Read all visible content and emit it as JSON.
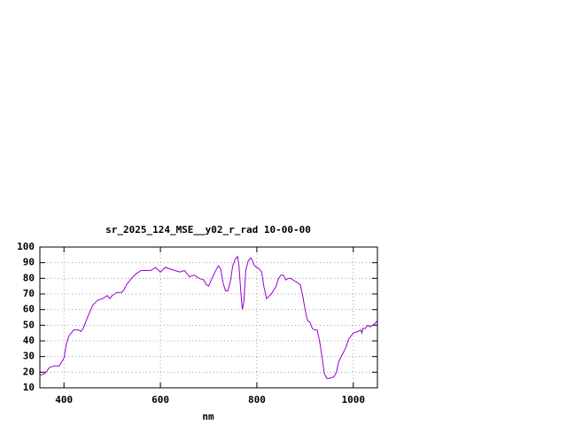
{
  "chart_data": {
    "type": "line",
    "title": "sr_2025_124_MSE__y02_r_rad 10-00-00",
    "x_label": "nm",
    "x": [
      350,
      360,
      370,
      380,
      390,
      400,
      405,
      410,
      420,
      430,
      435,
      440,
      450,
      460,
      470,
      480,
      490,
      495,
      500,
      510,
      520,
      525,
      530,
      540,
      550,
      560,
      570,
      580,
      590,
      600,
      610,
      620,
      630,
      640,
      650,
      660,
      670,
      680,
      690,
      695,
      700,
      710,
      720,
      725,
      730,
      735,
      740,
      745,
      750,
      755,
      760,
      763,
      767,
      770,
      773,
      777,
      782,
      787,
      790,
      795,
      800,
      805,
      810,
      815,
      820,
      830,
      840,
      845,
      850,
      855,
      860,
      865,
      870,
      880,
      890,
      895,
      900,
      905,
      910,
      915,
      920,
      925,
      930,
      935,
      940,
      945,
      950,
      960,
      965,
      970,
      980,
      985,
      990,
      1000,
      1010,
      1015,
      1018,
      1020,
      1025,
      1030,
      1035,
      1040,
      1045,
      1050
    ],
    "series": [
      {
        "color": "#9400d3",
        "values": [
          18,
          19,
          23,
          24,
          24,
          29,
          38,
          43,
          47,
          47,
          46,
          48,
          56,
          63,
          66,
          67,
          69,
          67,
          69,
          71,
          71,
          73,
          76,
          80,
          83,
          85,
          85,
          85,
          87,
          84,
          87,
          86,
          85,
          84,
          85,
          81,
          82,
          80,
          79,
          76,
          75,
          82,
          88,
          86,
          77,
          72,
          72,
          78,
          88,
          92,
          94,
          88,
          70,
          60,
          65,
          85,
          91,
          93,
          92,
          88,
          87,
          86,
          84,
          74,
          67,
          70,
          75,
          80,
          82,
          82,
          79,
          80,
          80,
          78,
          76,
          69,
          60,
          53,
          52,
          48,
          47,
          47,
          40,
          30,
          19,
          16,
          16,
          17,
          20,
          27,
          33,
          36,
          41,
          45,
          46,
          47,
          45,
          48,
          48,
          50,
          49,
          50,
          51,
          53
        ]
      }
    ],
    "xlim": [
      350,
      1050
    ],
    "ylim": [
      10,
      100
    ],
    "xticks": [
      400,
      600,
      800,
      1000
    ],
    "yticks": [
      10,
      20,
      30,
      40,
      50,
      60,
      70,
      80,
      90,
      100
    ],
    "grid": true
  }
}
